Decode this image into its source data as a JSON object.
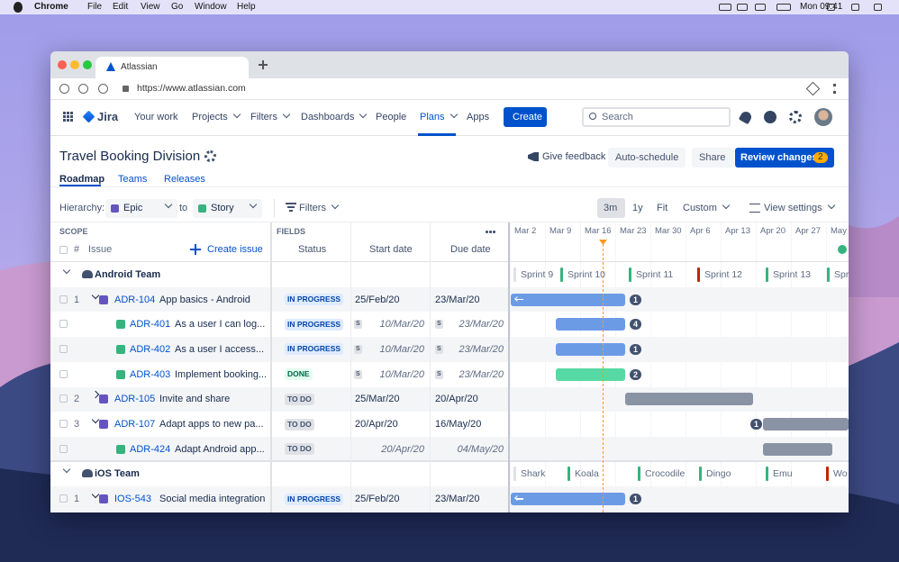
{
  "menubar": {
    "app": "Chrome",
    "menus": [
      "File",
      "Edit",
      "View",
      "Go",
      "Window",
      "Help"
    ],
    "clock": "Mon 09:41"
  },
  "browser": {
    "tab": "Atlassian",
    "url": "https://www.atlassian.com"
  },
  "nav": {
    "product": "Jira",
    "items": [
      {
        "label": "Your work",
        "menu": false
      },
      {
        "label": "Projects",
        "menu": true
      },
      {
        "label": "Filters",
        "menu": true
      },
      {
        "label": "Dashboards",
        "menu": true
      },
      {
        "label": "People",
        "menu": false
      },
      {
        "label": "Plans",
        "menu": true,
        "active": true
      },
      {
        "label": "Apps",
        "menu": false
      }
    ],
    "create": "Create",
    "search": "Search"
  },
  "plan": {
    "title": "Travel Booking Division",
    "feedback": "Give feedback",
    "auto_schedule": "Auto-schedule",
    "share": "Share",
    "review": "Review changes",
    "review_count": 2
  },
  "tabs": [
    {
      "label": "Roadmap",
      "active": true
    },
    {
      "label": "Teams"
    },
    {
      "label": "Releases"
    }
  ],
  "toolbar": {
    "hierarchy": "Hierarchy:",
    "from": "Epic",
    "to_word": "to",
    "to": "Story",
    "filters": "Filters",
    "zoom": [
      {
        "label": "3m",
        "active": true
      },
      {
        "label": "1y"
      },
      {
        "label": "Fit"
      },
      {
        "label": "Custom",
        "menu": true
      }
    ],
    "view_settings": "View settings"
  },
  "columns": {
    "scope": "SCOPE",
    "hash": "#",
    "issue": "Issue",
    "create_issue": "Create issue",
    "fields": "FIELDS",
    "status": "Status",
    "start": "Start date",
    "due": "Due date"
  },
  "timeline": {
    "dates": [
      "Mar 2",
      "Mar 9",
      "Mar 16",
      "Mar 23",
      "Mar 30",
      "Apr 6",
      "Apr 13",
      "Apr 20",
      "Apr 27",
      "May"
    ]
  },
  "teams": [
    {
      "name": "Android Team",
      "sprints": [
        {
          "name": "Sprint 9",
          "color": "#dfe1e6"
        },
        {
          "name": "Sprint 10",
          "color": "#36b37e"
        },
        {
          "name": "Sprint 11",
          "color": "#36b37e"
        },
        {
          "name": "Sprint 12",
          "color": "#bf2600"
        },
        {
          "name": "Sprint 13",
          "color": "#36b37e"
        },
        {
          "name": "Spr",
          "color": "#36b37e"
        }
      ],
      "rows": [
        {
          "level": 0,
          "number": 1,
          "expand": "open",
          "type": "epic",
          "key": "ADR-104",
          "summary": "App basics - Android",
          "status": "IN PROGRESS",
          "status_fg": "#0747a6",
          "status_bg": "#deebff",
          "start": "25/Feb/20",
          "due": "23/Mar/20",
          "bar_color": "#6c9be6",
          "count": 1
        },
        {
          "level": 1,
          "type": "story",
          "key": "ADR-401",
          "summary": "As a user I can log...",
          "status": "IN PROGRESS",
          "status_fg": "#0747a6",
          "status_bg": "#deebff",
          "start_flag": "S",
          "start": "10/Mar/20",
          "due_flag": "S",
          "due": "23/Mar/20",
          "bar_color": "#6c9be6",
          "count": 4
        },
        {
          "level": 1,
          "type": "story",
          "key": "ADR-402",
          "summary": "As a user I access...",
          "status": "IN PROGRESS",
          "status_fg": "#0747a6",
          "status_bg": "#deebff",
          "start_flag": "S",
          "start": "10/Mar/20",
          "due_flag": "S",
          "due": "23/Mar/20",
          "bar_color": "#6c9be6",
          "count": 1
        },
        {
          "level": 1,
          "type": "story",
          "key": "ADR-403",
          "summary": "Implement booking...",
          "status": "DONE",
          "status_fg": "#006644",
          "status_bg": "#e3fcef",
          "start_flag": "S",
          "start": "10/Mar/20",
          "due_flag": "S",
          "due": "23/Mar/20",
          "bar_color": "#57d9a3",
          "count": 2
        },
        {
          "level": 0,
          "number": 2,
          "expand": "closed",
          "type": "epic",
          "key": "ADR-105",
          "summary": "Invite and share",
          "status": "TO DO",
          "status_fg": "#42526e",
          "status_bg": "#dfe1e6",
          "start": "25/Mar/20",
          "due": "20/Apr/20",
          "bar_color": "#8993a4"
        },
        {
          "level": 0,
          "number": 3,
          "expand": "open",
          "type": "epic",
          "key": "ADR-107",
          "summary": "Adapt apps to new pa...",
          "status": "TO DO",
          "status_fg": "#42526e",
          "status_bg": "#dfe1e6",
          "start": "20/Apr/20",
          "due": "16/May/20",
          "bar_color": "#8993a4",
          "count": 1
        },
        {
          "level": 1,
          "type": "story",
          "key": "ADR-424",
          "summary": "Adapt Android app...",
          "status": "TO DO",
          "status_fg": "#42526e",
          "status_bg": "#dfe1e6",
          "start": "20/Apr/20",
          "due": "04/May/20",
          "bar_color": "#8993a4"
        }
      ]
    },
    {
      "name": "iOS Team",
      "sprints": [
        {
          "name": "Shark",
          "color": "#dfe1e6"
        },
        {
          "name": "Koala",
          "color": "#36b37e"
        },
        {
          "name": "Crocodile",
          "color": "#36b37e"
        },
        {
          "name": "Dingo",
          "color": "#36b37e"
        },
        {
          "name": "Emu",
          "color": "#36b37e"
        },
        {
          "name": "Wo",
          "color": "#bf2600"
        }
      ],
      "rows": [
        {
          "level": 0,
          "number": 1,
          "expand": "open",
          "type": "epic",
          "key": "IOS-543",
          "summary": "Social media integration",
          "status": "IN PROGRESS",
          "status_fg": "#0747a6",
          "status_bg": "#deebff",
          "start": "25/Feb/20",
          "due": "23/Mar/20",
          "bar_color": "#6c9be6",
          "count": 1
        }
      ]
    }
  ]
}
